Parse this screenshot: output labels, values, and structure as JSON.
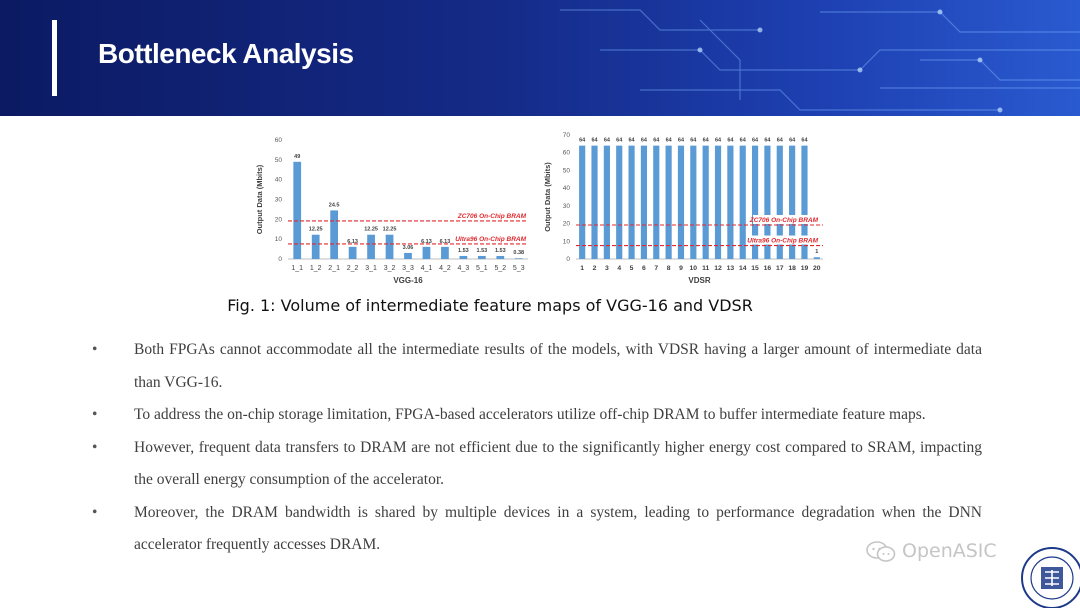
{
  "slide": {
    "title": "Bottleneck Analysis"
  },
  "colors": {
    "bar": "#5b9bd5",
    "bram_line": "#e0282e",
    "header": "#142a86"
  },
  "caption": "Fig. 1: Volume of intermediate feature maps of VGG-16 and VDSR",
  "bullets": [
    "Both FPGAs cannot accommodate all the intermediate results of the models, with VDSR having a larger amount of intermediate data than VGG-16.",
    "To address the on-chip storage limitation, FPGA-based accelerators utilize off-chip DRAM to buffer intermediate feature maps.",
    "However, frequent data transfers to DRAM are not efficient due to the significantly higher energy cost compared to SRAM, impacting the overall energy consumption of the accelerator.",
    "Moreover, the DRAM bandwidth is shared by multiple devices in a system, leading to performance degradation when the DNN accelerator frequently accesses DRAM."
  ],
  "watermark": {
    "text": "OpenASIC",
    "icon": "wechat-icon"
  },
  "seal": {
    "icon": "university-seal-icon",
    "text": "FUDAN UNIVERSITY",
    "year": "1905"
  },
  "chart_data": [
    {
      "type": "bar",
      "xlabel": "VGG-16",
      "ylabel": "Output Data (Mbits)",
      "ylim": [
        0,
        60
      ],
      "yticks": [
        0,
        10,
        20,
        30,
        40,
        50,
        60
      ],
      "categories": [
        "1_1",
        "1_2",
        "2_1",
        "2_2",
        "3_1",
        "3_2",
        "3_3",
        "4_1",
        "4_2",
        "4_3",
        "5_1",
        "5_2",
        "5_3"
      ],
      "values": [
        49,
        12.25,
        24.5,
        6.13,
        12.25,
        12.25,
        3.06,
        6.13,
        6.13,
        1.53,
        1.53,
        1.53,
        0.38
      ],
      "data_labels": [
        "49",
        "12.25",
        "24.5",
        "6.13",
        "12.25",
        "12.25",
        "3.06",
        "6.13",
        "6.13",
        "1.53",
        "1.53",
        "1.53",
        "0.38"
      ],
      "reference_lines": [
        {
          "label": "ZC706 On-Chip BRAM",
          "value": 19.2
        },
        {
          "label": "Ultra96 On-Chip BRAM",
          "value": 7.6
        }
      ]
    },
    {
      "type": "bar",
      "xlabel": "VDSR",
      "ylabel": "Output Data (Mbits)",
      "ylim": [
        0,
        70
      ],
      "yticks": [
        0,
        10,
        20,
        30,
        40,
        50,
        60,
        70
      ],
      "categories": [
        "1",
        "2",
        "3",
        "4",
        "5",
        "6",
        "7",
        "8",
        "9",
        "10",
        "11",
        "12",
        "13",
        "14",
        "15",
        "16",
        "17",
        "18",
        "19",
        "20"
      ],
      "values": [
        64,
        64,
        64,
        64,
        64,
        64,
        64,
        64,
        64,
        64,
        64,
        64,
        64,
        64,
        64,
        64,
        64,
        64,
        64,
        1
      ],
      "data_labels": [
        "64",
        "64",
        "64",
        "64",
        "64",
        "64",
        "64",
        "64",
        "64",
        "64",
        "64",
        "64",
        "64",
        "64",
        "64",
        "64",
        "64",
        "64",
        "64",
        "1"
      ],
      "reference_lines": [
        {
          "label": "ZC706 On-Chip BRAM",
          "value": 19.2
        },
        {
          "label": "Ultra96 On-Chip BRAM",
          "value": 7.6
        }
      ]
    }
  ]
}
